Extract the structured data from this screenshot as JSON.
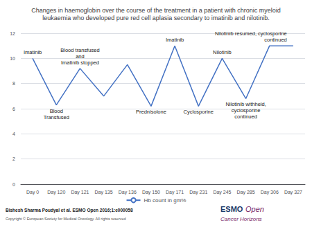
{
  "chart_data": {
    "type": "line",
    "title": "Changes in haemoglobin over the course of the treatment in a patient with chronic myeloid\nleukaemia who developed pure red cell aplasia secondary to imatinib and nilotinib.",
    "categories": [
      "Day 0",
      "Day 120",
      "Day 121",
      "Day 135",
      "Day 136",
      "Day 150",
      "Day 171",
      "Day 231",
      "Day 245",
      "Day 285",
      "Day 306",
      "Day 327"
    ],
    "series": [
      {
        "name": "Hb count in gm%",
        "color": "#4472C4",
        "values": [
          10.0,
          6.3,
          9.2,
          7.0,
          9.5,
          6.2,
          11.0,
          6.2,
          10.0,
          6.8,
          11.0,
          11.0
        ]
      }
    ],
    "ylim": [
      0,
      12
    ],
    "yticks": [
      0,
      2,
      4,
      6,
      8,
      10,
      12
    ],
    "grid": true,
    "legend": "bottom",
    "annotations": [
      {
        "text": "Imatinib",
        "x": "Day 0",
        "y": 10.0
      },
      {
        "text": "Blood\nTransfused",
        "x": "Day 120",
        "y": 6.3
      },
      {
        "text": "Blood transfused\nand\nImatinib stopped",
        "x": "Day 121",
        "y": 9.2
      },
      {
        "text": "Prednisolone",
        "x": "Day 150",
        "y": 6.2
      },
      {
        "text": "Imatinib",
        "x": "Day 171",
        "y": 11.0
      },
      {
        "text": "Cyclosporine",
        "x": "Day 231",
        "y": 6.2
      },
      {
        "text": "Nilotinib",
        "x": "Day 245",
        "y": 10.0
      },
      {
        "text": "Nilotinib withheld,\ncyclosporine\ncontinued",
        "x": "Day 285",
        "y": 6.8
      },
      {
        "text": "Nilotinib resumed, cyclosporine\ncontinued",
        "x": "Day 306",
        "y": 11.0
      }
    ],
    "citation": "Bishesh Sharma Poudyal et al. ESMO Open 2016;1:e000058",
    "copyright": "Copyright © European Society for Medical Oncology. All rights reserved",
    "logo": [
      {
        "text": "ESMO",
        "color": "#1a3a6b"
      },
      {
        "text": "Open",
        "color": "#7a2a6b"
      },
      {
        "text": "Cancer Horizons",
        "color": "#7a2a6b"
      }
    ]
  }
}
